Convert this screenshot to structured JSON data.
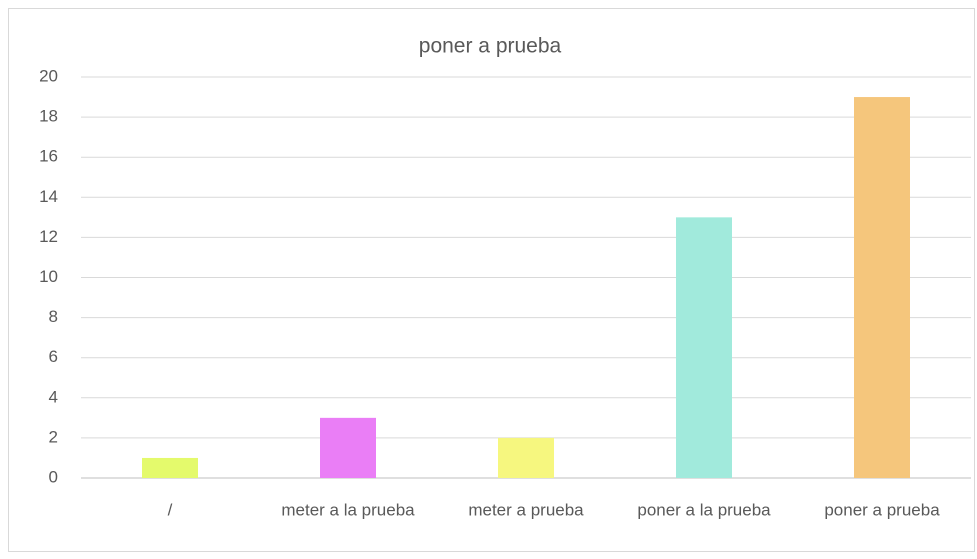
{
  "chart_data": {
    "type": "bar",
    "title": "poner a prueba",
    "categories": [
      "/",
      "meter a la prueba",
      "meter a prueba",
      "poner a la prueba",
      "poner a prueba"
    ],
    "values": [
      1,
      3,
      2,
      13,
      19
    ],
    "colors": [
      "#e4fa6c",
      "#ea7ef6",
      "#f6f77f",
      "#a1eadc",
      "#f5c67c"
    ],
    "ylim": [
      0,
      20
    ],
    "yticks": [
      0,
      2,
      4,
      6,
      8,
      10,
      12,
      14,
      16,
      18,
      20
    ],
    "grid": true
  }
}
